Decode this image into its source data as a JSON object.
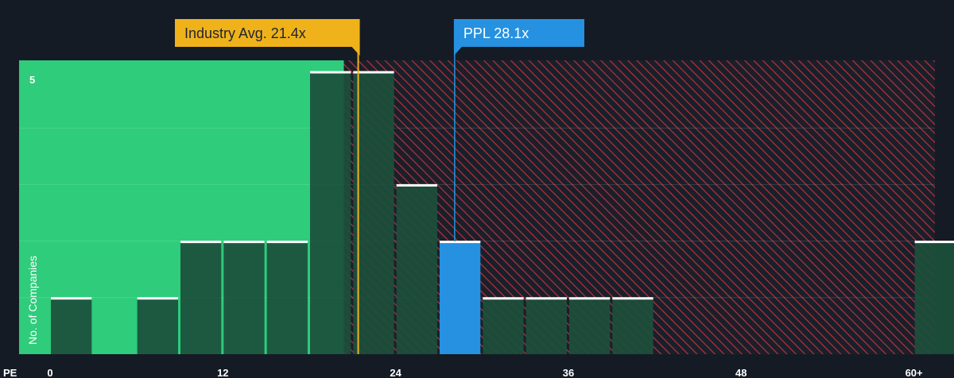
{
  "chart_data": {
    "type": "bar",
    "xlabel": "PE",
    "ylabel": "No. of Companies",
    "xlim": [
      -3,
      62
    ],
    "ylim": [
      0,
      5.2
    ],
    "x_ticks": [
      {
        "value": 0,
        "label": "0"
      },
      {
        "value": 12,
        "label": "12"
      },
      {
        "value": 24,
        "label": "24"
      },
      {
        "value": 36,
        "label": "36"
      },
      {
        "value": 48,
        "label": "48"
      },
      {
        "value": 60,
        "label": "60+"
      }
    ],
    "y_ticks": [
      {
        "value": 5,
        "label": "5"
      }
    ],
    "grid": true,
    "bin_width": 3,
    "bins": [
      {
        "x0": 0,
        "x1": 3,
        "count": 1
      },
      {
        "x0": 6,
        "x1": 9,
        "count": 1
      },
      {
        "x0": 9,
        "x1": 12,
        "count": 2
      },
      {
        "x0": 12,
        "x1": 15,
        "count": 2
      },
      {
        "x0": 15,
        "x1": 18,
        "count": 2
      },
      {
        "x0": 18,
        "x1": 21,
        "count": 5
      },
      {
        "x0": 21,
        "x1": 24,
        "count": 5
      },
      {
        "x0": 24,
        "x1": 27,
        "count": 3
      },
      {
        "x0": 27,
        "x1": 30,
        "count": 2,
        "highlight": true
      },
      {
        "x0": 30,
        "x1": 33,
        "count": 1
      },
      {
        "x0": 33,
        "x1": 36,
        "count": 1
      },
      {
        "x0": 36,
        "x1": 39,
        "count": 1
      },
      {
        "x0": 39,
        "x1": 42,
        "count": 1
      },
      {
        "x0": 60,
        "x1": 63,
        "count": 2
      }
    ],
    "industry_avg": {
      "value": 21.4,
      "label": "Industry Avg. 21.4x"
    },
    "company": {
      "value": 28.1,
      "label": "PPL 28.1x"
    },
    "colors": {
      "background": "#151b24",
      "below_avg_zone": "#2ecc7b",
      "above_avg_zone": "#c0392b",
      "bar": "#1c4f3c",
      "bar_top": "#ffffff",
      "highlight_bar": "#2591e0",
      "avg_callout": "#f0b21b",
      "company_callout": "#2591e0"
    }
  }
}
